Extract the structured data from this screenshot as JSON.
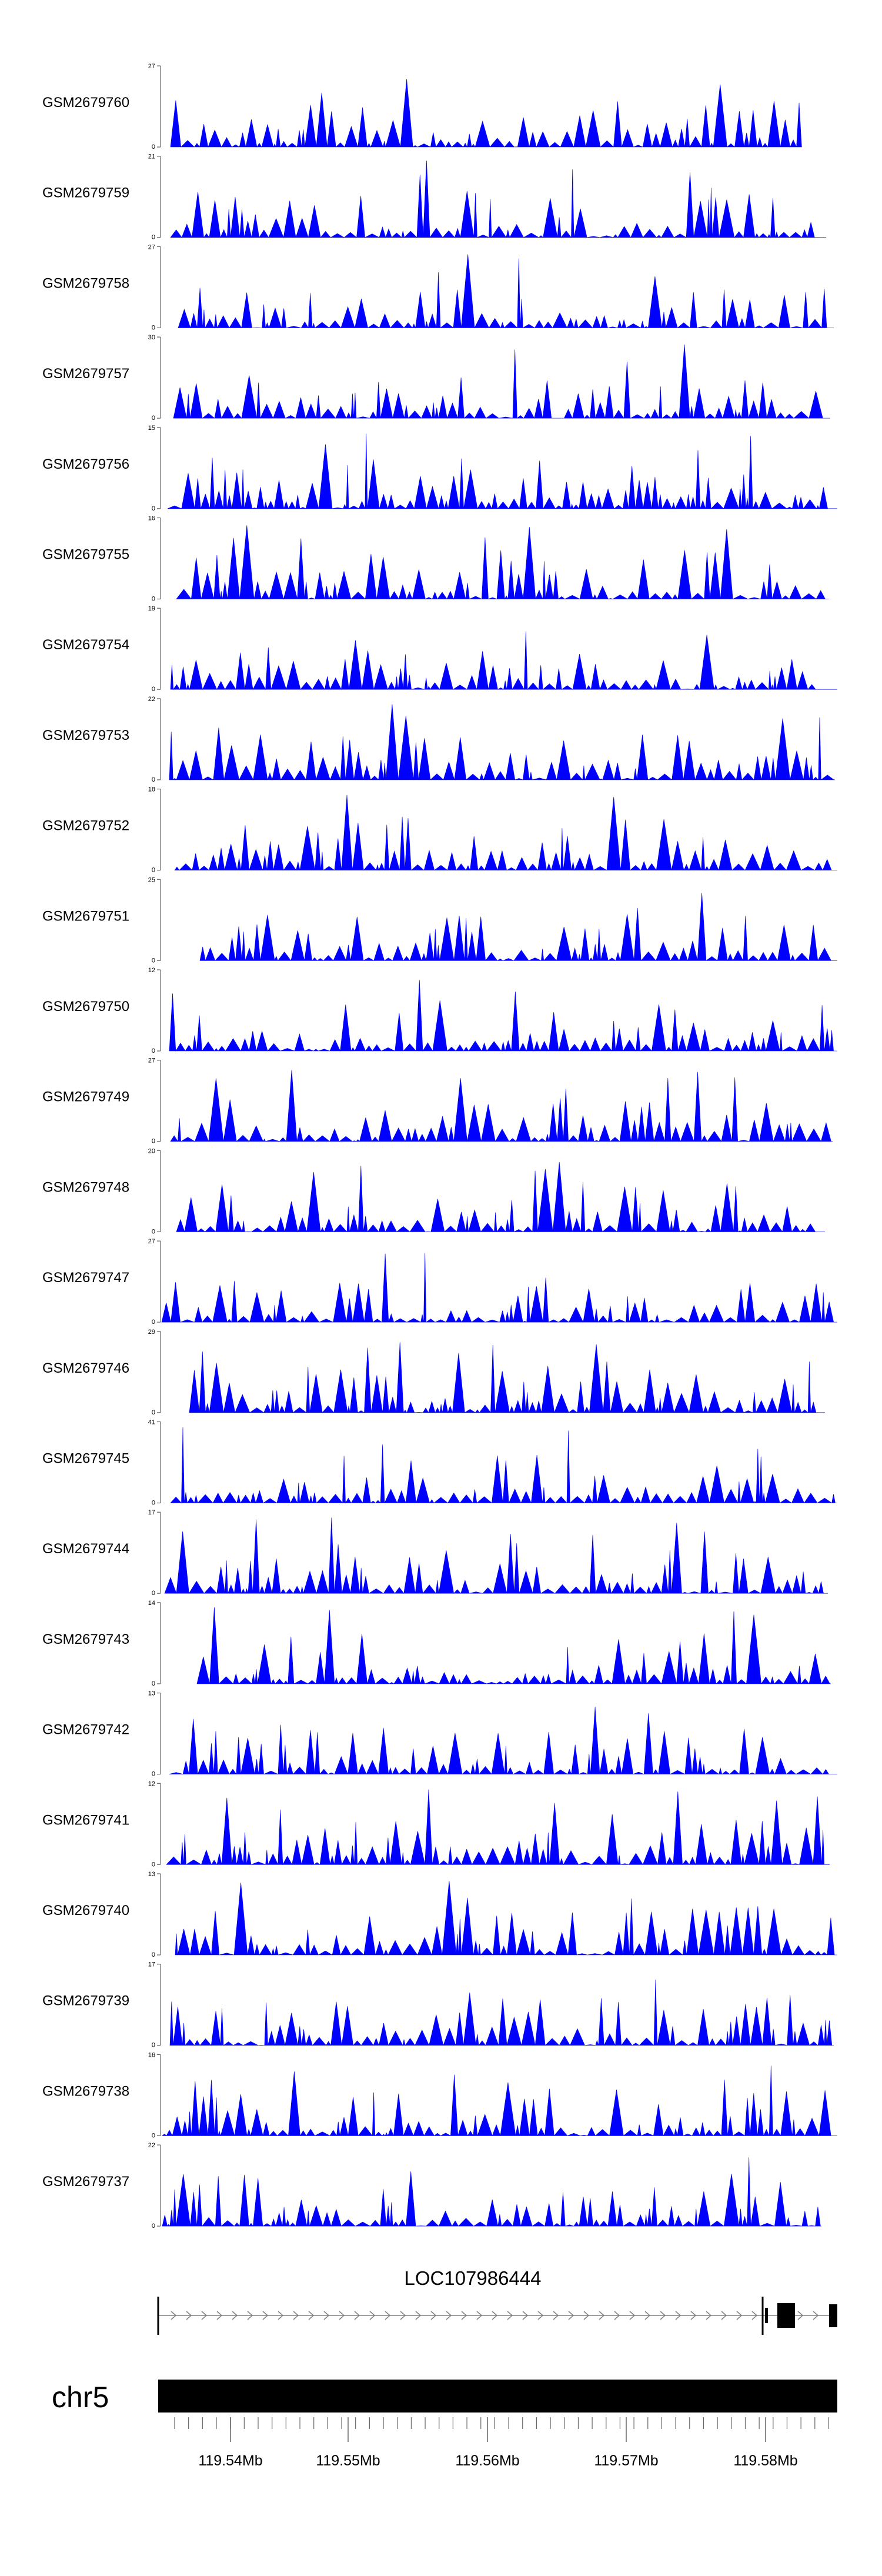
{
  "chart_data": {
    "type": "area",
    "title": "",
    "series_color": "#0000ff",
    "tracks": [
      {
        "name": "GSM2679760",
        "ymax": "27",
        "ymin": "0"
      },
      {
        "name": "GSM2679759",
        "ymax": "21",
        "ymin": "0"
      },
      {
        "name": "GSM2679758",
        "ymax": "27",
        "ymin": "0"
      },
      {
        "name": "GSM2679757",
        "ymax": "30",
        "ymin": "0"
      },
      {
        "name": "GSM2679756",
        "ymax": "15",
        "ymin": "0"
      },
      {
        "name": "GSM2679755",
        "ymax": "16",
        "ymin": "0"
      },
      {
        "name": "GSM2679754",
        "ymax": "19",
        "ymin": "0"
      },
      {
        "name": "GSM2679753",
        "ymax": "22",
        "ymin": "0"
      },
      {
        "name": "GSM2679752",
        "ymax": "18",
        "ymin": "0"
      },
      {
        "name": "GSM2679751",
        "ymax": "25",
        "ymin": "0"
      },
      {
        "name": "GSM2679750",
        "ymax": "12",
        "ymin": "0"
      },
      {
        "name": "GSM2679749",
        "ymax": "27",
        "ymin": "0"
      },
      {
        "name": "GSM2679748",
        "ymax": "20",
        "ymin": "0"
      },
      {
        "name": "GSM2679747",
        "ymax": "27",
        "ymin": "0"
      },
      {
        "name": "GSM2679746",
        "ymax": "29",
        "ymin": "0"
      },
      {
        "name": "GSM2679745",
        "ymax": "41",
        "ymin": "0"
      },
      {
        "name": "GSM2679744",
        "ymax": "17",
        "ymin": "0"
      },
      {
        "name": "GSM2679743",
        "ymax": "14",
        "ymin": "0"
      },
      {
        "name": "GSM2679742",
        "ymax": "13",
        "ymin": "0"
      },
      {
        "name": "GSM2679741",
        "ymax": "12",
        "ymin": "0"
      },
      {
        "name": "GSM2679740",
        "ymax": "13",
        "ymin": "0"
      },
      {
        "name": "GSM2679739",
        "ymax": "17",
        "ymin": "0"
      },
      {
        "name": "GSM2679738",
        "ymax": "16",
        "ymin": "0"
      },
      {
        "name": "GSM2679737",
        "ymax": "22",
        "ymin": "0"
      }
    ],
    "gene": {
      "name": "LOC107986444"
    },
    "chromosome": "chr5",
    "x_ticks": [
      "119.54Mb",
      "119.55Mb",
      "119.56Mb",
      "119.57Mb",
      "119.58Mb"
    ]
  }
}
